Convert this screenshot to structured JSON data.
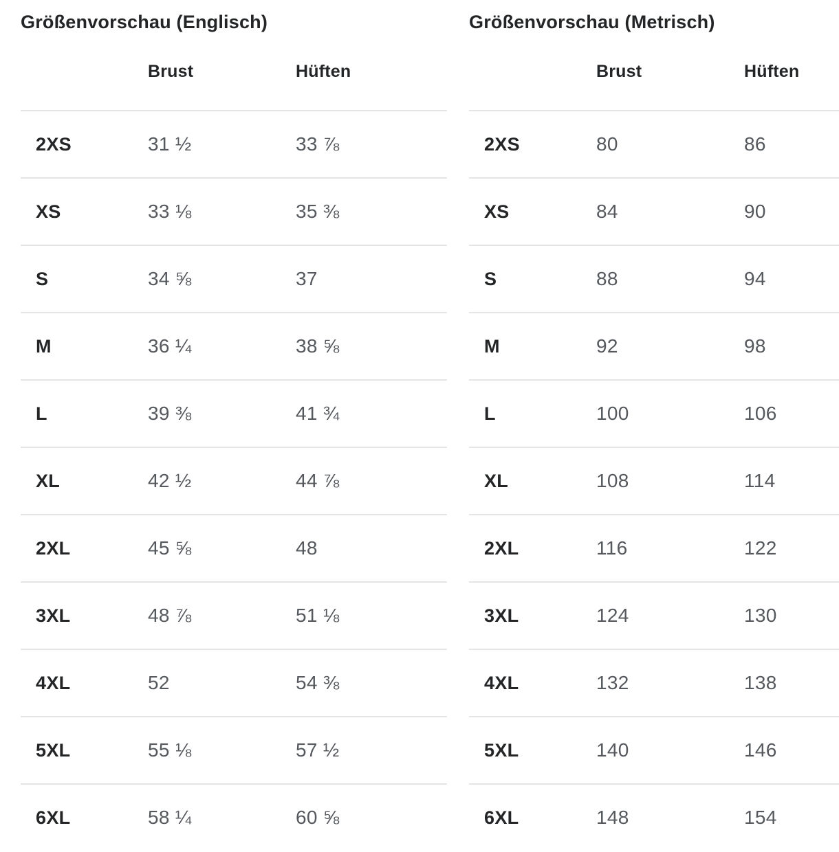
{
  "tables": [
    {
      "id": "english",
      "title": "Größenvorschau (Englisch)",
      "columns": [
        "Brust",
        "Hüften"
      ],
      "rows": [
        {
          "size": "2XS",
          "brust": "31 ½",
          "hueften": "33 ⅞"
        },
        {
          "size": "XS",
          "brust": "33 ⅛",
          "hueften": "35 ⅜"
        },
        {
          "size": "S",
          "brust": "34 ⅝",
          "hueften": "37"
        },
        {
          "size": "M",
          "brust": "36 ¼",
          "hueften": "38 ⅝"
        },
        {
          "size": "L",
          "brust": "39 ⅜",
          "hueften": "41 ¾"
        },
        {
          "size": "XL",
          "brust": "42 ½",
          "hueften": "44 ⅞"
        },
        {
          "size": "2XL",
          "brust": "45 ⅝",
          "hueften": "48"
        },
        {
          "size": "3XL",
          "brust": "48 ⅞",
          "hueften": "51 ⅛"
        },
        {
          "size": "4XL",
          "brust": "52",
          "hueften": "54 ⅜"
        },
        {
          "size": "5XL",
          "brust": "55 ⅛",
          "hueften": "57 ½"
        },
        {
          "size": "6XL",
          "brust": "58 ¼",
          "hueften": "60 ⅝"
        }
      ]
    },
    {
      "id": "metric",
      "title": "Größenvorschau (Metrisch)",
      "columns": [
        "Brust",
        "Hüften"
      ],
      "rows": [
        {
          "size": "2XS",
          "brust": "80",
          "hueften": "86"
        },
        {
          "size": "XS",
          "brust": "84",
          "hueften": "90"
        },
        {
          "size": "S",
          "brust": "88",
          "hueften": "94"
        },
        {
          "size": "M",
          "brust": "92",
          "hueften": "98"
        },
        {
          "size": "L",
          "brust": "100",
          "hueften": "106"
        },
        {
          "size": "XL",
          "brust": "108",
          "hueften": "114"
        },
        {
          "size": "2XL",
          "brust": "116",
          "hueften": "122"
        },
        {
          "size": "3XL",
          "brust": "124",
          "hueften": "130"
        },
        {
          "size": "4XL",
          "brust": "132",
          "hueften": "138"
        },
        {
          "size": "5XL",
          "brust": "140",
          "hueften": "146"
        },
        {
          "size": "6XL",
          "brust": "148",
          "hueften": "154"
        }
      ]
    }
  ],
  "colors": {
    "background": "#ffffff",
    "text_primary": "#232527",
    "text_secondary": "#55585d",
    "divider": "#e4e4e5"
  }
}
